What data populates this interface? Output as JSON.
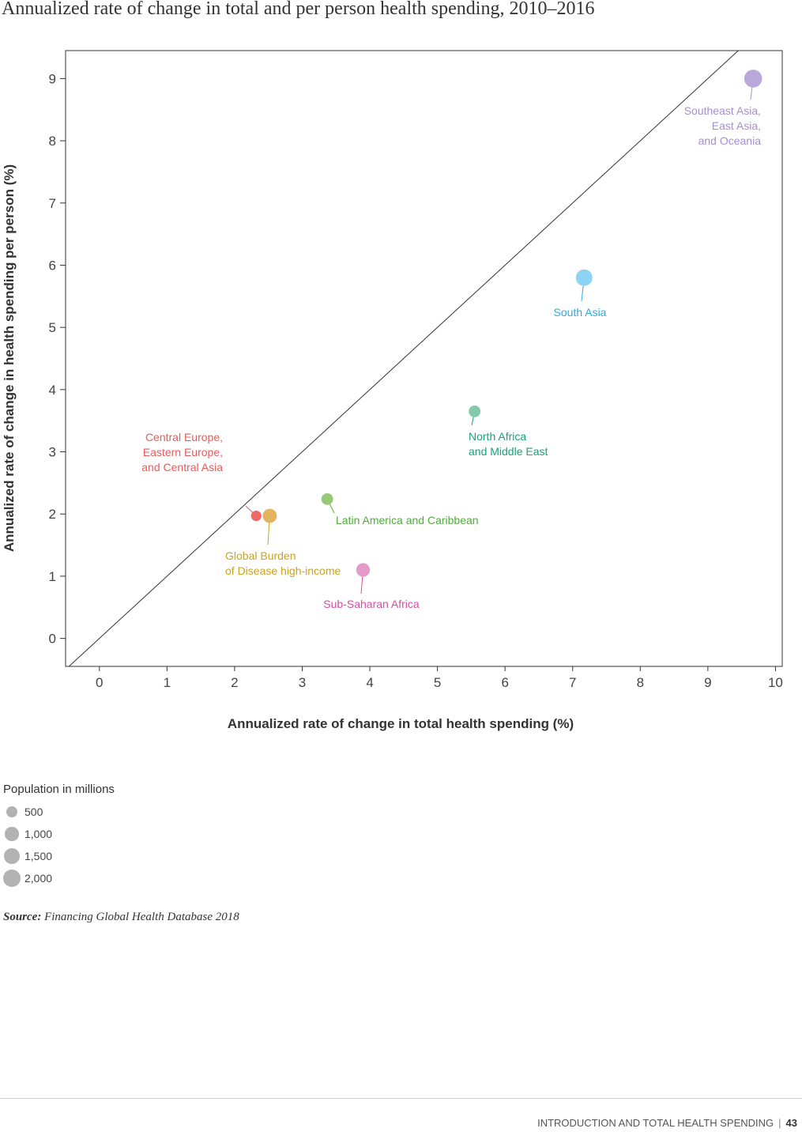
{
  "chart_data": {
    "type": "scatter",
    "title": "Annualized rate of change in total and per person health spending, 2010–2016",
    "xlabel": "Annualized rate of change in total health spending (%)",
    "ylabel": "Annualized rate of change in health spending per person (%)",
    "xlim": [
      -0.5,
      10.1
    ],
    "ylim": [
      -0.45,
      9.45
    ],
    "xticks": [
      "0",
      "1",
      "2",
      "3",
      "4",
      "5",
      "6",
      "7",
      "8",
      "9",
      "10"
    ],
    "yticks": [
      "0",
      "1",
      "2",
      "3",
      "4",
      "5",
      "6",
      "7",
      "8",
      "9"
    ],
    "reference_line": "y = x",
    "grid": false,
    "size_variable": "Population in millions",
    "points": [
      {
        "label": "Southeast Asia, East Asia, and Oceania",
        "label_lines": [
          "Southeast Asia,",
          "East Asia,",
          "and Oceania"
        ],
        "x": 9.67,
        "y": 9.0,
        "population": 2150,
        "color": "#b9a8dc"
      },
      {
        "label": "South Asia",
        "label_lines": [
          "South Asia"
        ],
        "x": 7.17,
        "y": 5.8,
        "population": 1750,
        "color": "#8fd3f4"
      },
      {
        "label": "North Africa and Middle East",
        "label_lines": [
          "North Africa",
          "and Middle East"
        ],
        "x": 5.55,
        "y": 3.65,
        "population": 600,
        "color": "#85c9ab"
      },
      {
        "label": "Latin America and Caribbean",
        "label_lines": [
          "Latin America and Caribbean"
        ],
        "x": 3.37,
        "y": 2.24,
        "population": 600,
        "color": "#96c876"
      },
      {
        "label": "Central Europe, Eastern Europe, and Central Asia",
        "label_lines": [
          "Central Europe,",
          "Eastern Europe,",
          "and Central Asia"
        ],
        "x": 2.32,
        "y": 1.97,
        "population": 400,
        "color": "#ec6a6a"
      },
      {
        "label": "Global Burden of Disease high-income",
        "label_lines": [
          "Global Burden",
          "of Disease high-income"
        ],
        "x": 2.52,
        "y": 1.97,
        "population": 1100,
        "color": "#e3b55f"
      },
      {
        "label": "Sub-Saharan Africa",
        "label_lines": [
          "Sub-Saharan Africa"
        ],
        "x": 3.9,
        "y": 1.1,
        "population": 1000,
        "color": "#e49bc8"
      }
    ]
  },
  "label_colors": {
    "Southeast Asia, East Asia, and Oceania": "#a68fd0",
    "South Asia": "#2eaadc",
    "North Africa and Middle East": "#1aa27a",
    "Latin America and Caribbean": "#4fae38",
    "Central Europe, Eastern Europe, and Central Asia": "#e85b5b",
    "Global Burden of Disease high-income": "#c9a420",
    "Sub-Saharan Africa": "#d64fa4"
  },
  "legend": {
    "title": "Population in millions",
    "items": [
      {
        "label": "500",
        "population": 500
      },
      {
        "label": "1,000",
        "population": 1000
      },
      {
        "label": "1,500",
        "population": 1500
      },
      {
        "label": "2,000",
        "population": 2000
      }
    ]
  },
  "source": {
    "prefix": "Source:",
    "text": "Financing Global Health Database 2018"
  },
  "footer": {
    "section": "INTRODUCTION AND TOTAL HEALTH SPENDING",
    "separator": "|",
    "page": "43"
  }
}
